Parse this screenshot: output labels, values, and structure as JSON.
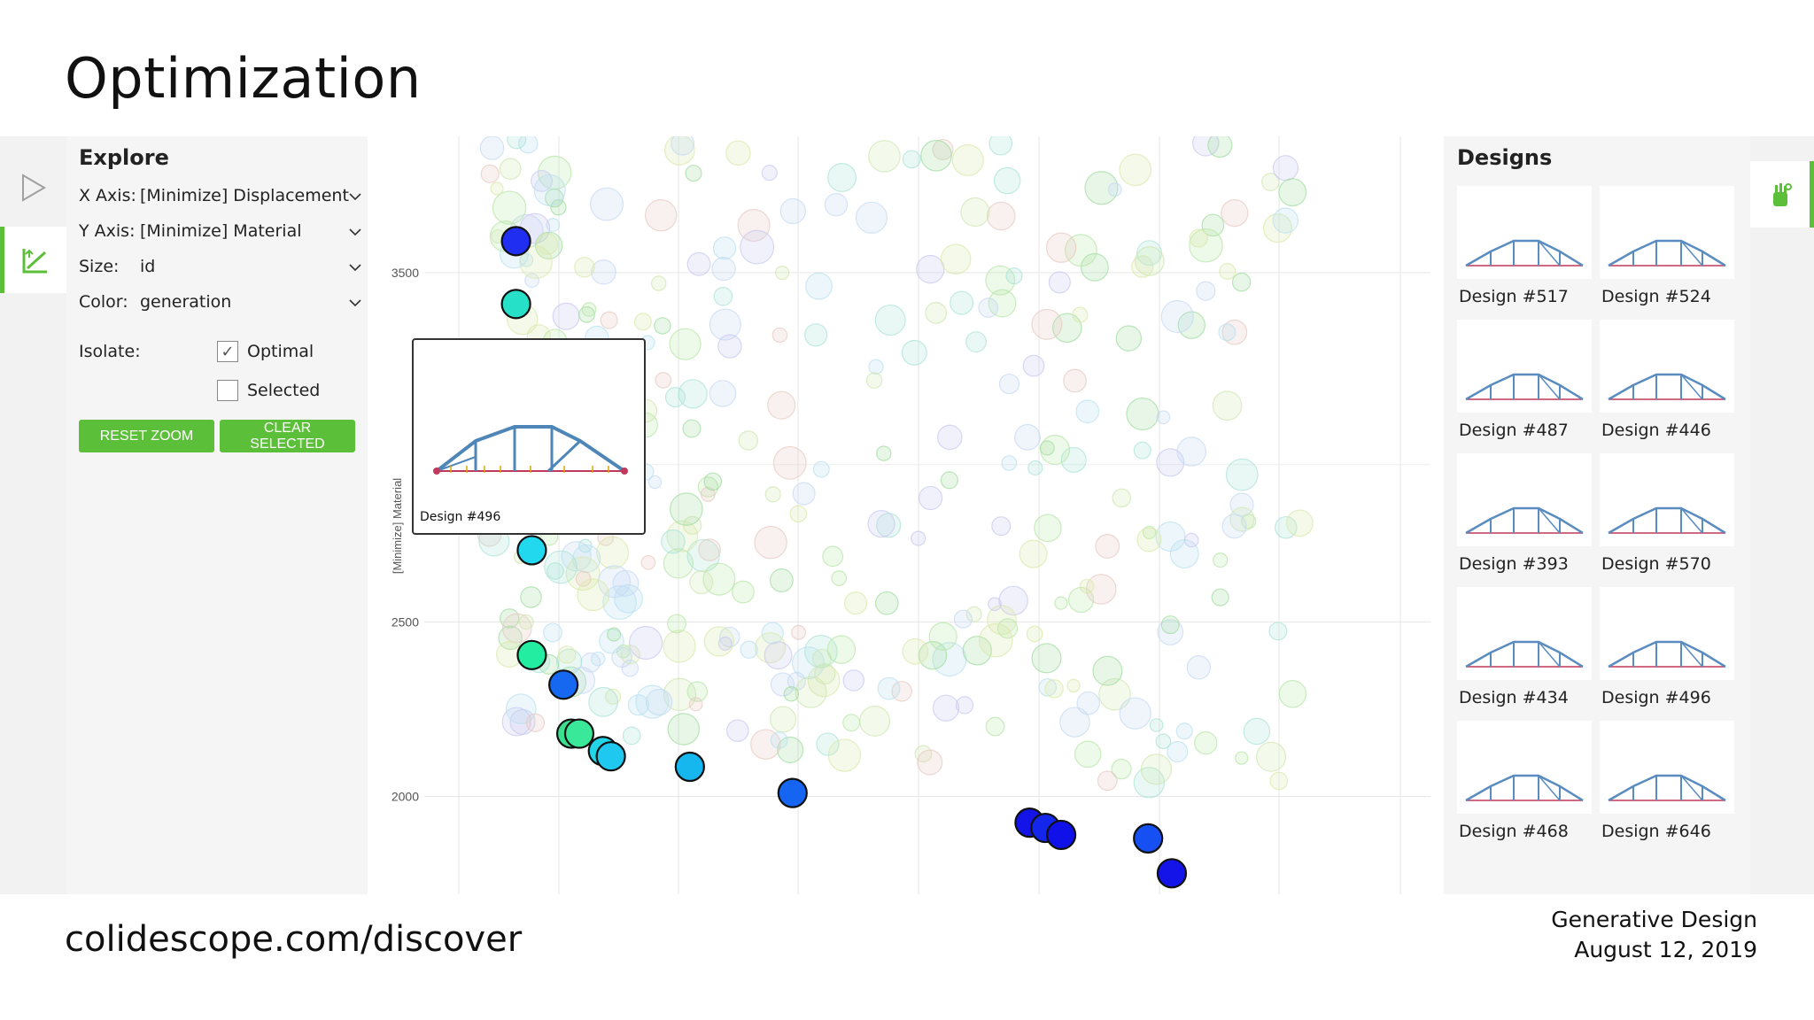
{
  "slide": {
    "title": "Optimization",
    "url": "colidescope.com/discover",
    "footer_line1": "Generative Design",
    "footer_line2": "August 12, 2019"
  },
  "rail": {
    "play_icon": "play-icon",
    "axes_icon": "chart-axes-icon"
  },
  "explore": {
    "heading": "Explore",
    "fields": [
      {
        "label": "X Axis:",
        "value": "[Minimize] Displacement"
      },
      {
        "label": "Y Axis:",
        "value": "[Minimize] Material"
      },
      {
        "label": "Size:",
        "value": "id"
      },
      {
        "label": "Color:",
        "value": "generation"
      }
    ],
    "isolate_label": "Isolate:",
    "optimal": {
      "label": "Optimal",
      "checked": true
    },
    "selected": {
      "label": "Selected",
      "checked": false
    },
    "reset_zoom": "RESET ZOOM",
    "clear_selected": "CLEAR SELECTED",
    "accent": "#5cbf3a"
  },
  "chart_data": {
    "type": "scatter",
    "ylabel": "[Minimize] Material",
    "xlabel": "",
    "y_ticks": [
      3500,
      2500,
      2000
    ],
    "ylim": [
      1720,
      3890
    ],
    "grid": true,
    "optimal_points": [
      {
        "x": 0.05,
        "y": 3590,
        "color": "#1f2ef0"
      },
      {
        "x": 0.05,
        "y": 3410,
        "color": "#26e0c8"
      },
      {
        "x": 0.07,
        "y": 2705,
        "color": "#21d8ee"
      },
      {
        "x": 0.07,
        "y": 2405,
        "color": "#22eda0"
      },
      {
        "x": 0.11,
        "y": 2320,
        "color": "#1668f0"
      },
      {
        "x": 0.12,
        "y": 2180,
        "color": "#3ae08f"
      },
      {
        "x": 0.13,
        "y": 2180,
        "color": "#3ae89a"
      },
      {
        "x": 0.16,
        "y": 2130,
        "color": "#22d6e8"
      },
      {
        "x": 0.17,
        "y": 2115,
        "color": "#1ec8ee"
      },
      {
        "x": 0.27,
        "y": 2085,
        "color": "#16b6ee"
      },
      {
        "x": 0.4,
        "y": 2010,
        "color": "#1665f2"
      },
      {
        "x": 0.7,
        "y": 1925,
        "color": "#1414e8"
      },
      {
        "x": 0.72,
        "y": 1910,
        "color": "#1426ec"
      },
      {
        "x": 0.74,
        "y": 1890,
        "color": "#1010e8"
      },
      {
        "x": 0.85,
        "y": 1880,
        "color": "#1650f2"
      },
      {
        "x": 0.88,
        "y": 1780,
        "color": "#1414e8"
      }
    ],
    "tooltip_design": "Design #496"
  },
  "designs": {
    "heading": "Designs",
    "items": [
      {
        "label": "Design #517"
      },
      {
        "label": "Design #524"
      },
      {
        "label": "Design #487"
      },
      {
        "label": "Design #446"
      },
      {
        "label": "Design #393"
      },
      {
        "label": "Design #570"
      },
      {
        "label": "Design #434"
      },
      {
        "label": "Design #496"
      },
      {
        "label": "Design #468"
      },
      {
        "label": "Design #646"
      }
    ]
  },
  "right_rail": {
    "icon": "hand-gear-icon"
  }
}
